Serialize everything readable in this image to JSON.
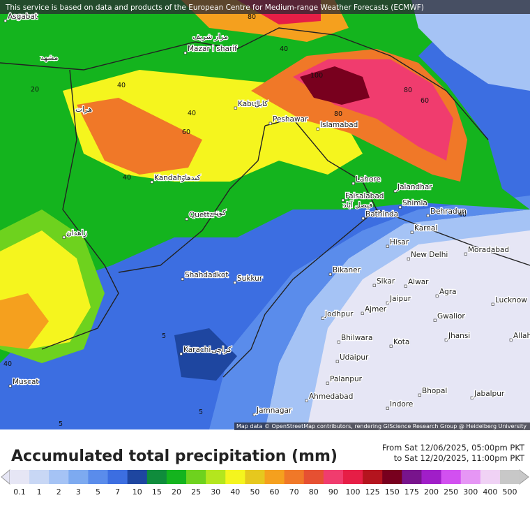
{
  "header": {
    "notice": "This service is based on data and products of the European Centre for Medium-range Weather Forecasts (ECMWF)"
  },
  "map": {
    "attribution": "Map data © OpenStreetMap contributors, rendering GIScience Research Group @ Heidelberg University",
    "cities": [
      "Asgabat",
      "مشهد",
      "مزار شریف",
      "Mazar i sharif",
      "هرات",
      "Kabul",
      "کابل",
      "Peshawar",
      "Islamabad",
      "Kandahar",
      "کندهار",
      "Quetta",
      "کوټه",
      "زاهدان",
      "Lahore",
      "Faisalabad",
      "فیصل آباد",
      "Jalandhar",
      "Shimla",
      "Dehradun",
      "Bathinda",
      "Karnal",
      "Hisar",
      "New Delhi",
      "Moradabad",
      "Bikaner",
      "Sikar",
      "Alwar",
      "Agra",
      "Lucknow",
      "Jaipur",
      "Ajmer",
      "Jodhpur",
      "Gwalior",
      "Jhansi",
      "Allah",
      "Bhilwara",
      "Kota",
      "Udaipur",
      "Palanpur",
      "Ahmedabad",
      "Bhopal",
      "Jabalpur",
      "Indore",
      "Jamnagar",
      "Karachi",
      "کراچی",
      "Shahdadkot",
      "Sukkur",
      "Muscat"
    ],
    "contour_labels": [
      "80",
      "40",
      "40",
      "20",
      "40",
      "60",
      "40",
      "100",
      "80",
      "60",
      "80",
      "40",
      "5",
      "40",
      "5",
      "5"
    ]
  },
  "legend": {
    "title": "Accumulated total precipitation (mm)",
    "from": "From Sat 12/06/2025, 05:00pm PKT",
    "to": "to Sat 12/20/2025, 11:00pm PKT",
    "ticks": [
      0.1,
      1,
      2,
      3,
      5,
      7,
      10,
      15,
      20,
      25,
      30,
      40,
      50,
      60,
      70,
      80,
      90,
      100,
      125,
      150,
      175,
      200,
      250,
      300,
      400,
      500
    ],
    "colors": [
      "#e6e6f5",
      "#c8d7f5",
      "#a5c3f5",
      "#7daaf0",
      "#5a8ceb",
      "#3c6ee1",
      "#1e46a0",
      "#0f8c3c",
      "#14b41e",
      "#6ed21e",
      "#b4e61e",
      "#f5f51e",
      "#e6c81e",
      "#f5a01e",
      "#f07828",
      "#e65032",
      "#f03c6e",
      "#e61e46",
      "#b4141e",
      "#78001e",
      "#78148c",
      "#a01ec8",
      "#d250f0",
      "#e696f5",
      "#f0d2f5",
      "#c8c8c8"
    ]
  }
}
